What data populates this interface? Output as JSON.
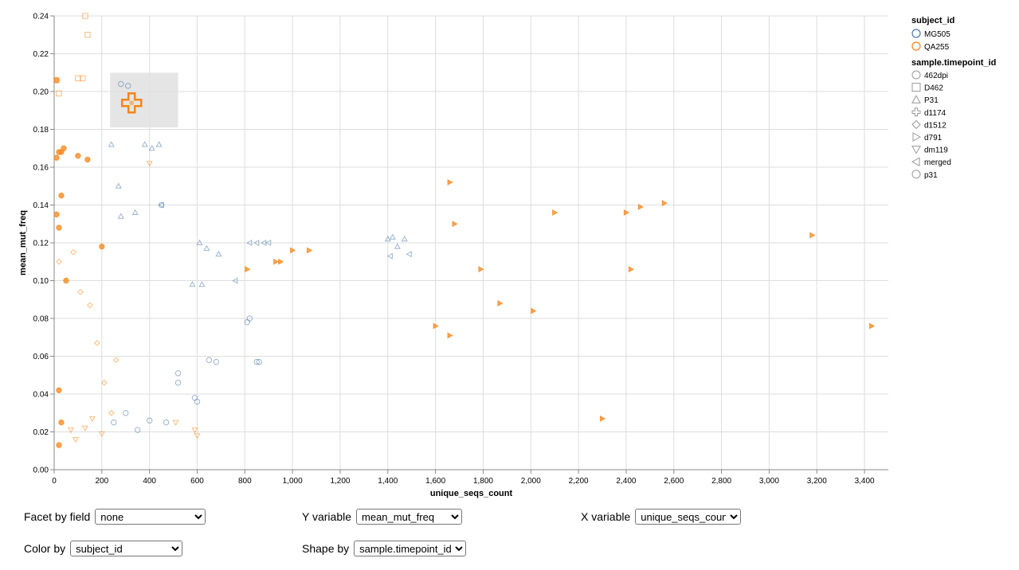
{
  "chart_data": {
    "type": "scatter",
    "title": "",
    "xlabel": "unique_seqs_count",
    "ylabel": "mean_mut_freq",
    "xlim": [
      0,
      3500
    ],
    "ylim": [
      0,
      0.24
    ],
    "x_ticks": [
      "0",
      "200",
      "400",
      "600",
      "800",
      "1,000",
      "1,200",
      "1,400",
      "1,600",
      "1,800",
      "2,000",
      "2,200",
      "2,400",
      "2,600",
      "2,800",
      "3,000",
      "3,200",
      "3,400"
    ],
    "y_ticks": [
      "0.00",
      "0.02",
      "0.04",
      "0.06",
      "0.08",
      "0.10",
      "0.12",
      "0.14",
      "0.16",
      "0.18",
      "0.20",
      "0.22",
      "0.24"
    ],
    "grid": true,
    "legend_placement": "right",
    "colors": {
      "MG505": "#4c78a8",
      "QA255": "#f58518",
      "highlight": "#e0e0e0"
    },
    "color_legend": {
      "title": "subject_id",
      "entries": [
        "MG505",
        "QA255"
      ]
    },
    "shape_legend": {
      "title": "sample.timepoint_id",
      "entries": [
        {
          "label": "462dpi",
          "shape": "circle"
        },
        {
          "label": "D462",
          "shape": "square"
        },
        {
          "label": "P31",
          "shape": "triangle-up"
        },
        {
          "label": "d1174",
          "shape": "cross"
        },
        {
          "label": "d1512",
          "shape": "diamond"
        },
        {
          "label": "d791",
          "shape": "triangle-right"
        },
        {
          "label": "dm119",
          "shape": "triangle-down"
        },
        {
          "label": "merged",
          "shape": "triangle-left"
        },
        {
          "label": "p31",
          "shape": "circle"
        }
      ]
    },
    "highlight_box": {
      "x_range": [
        235,
        520
      ],
      "y_range": [
        0.181,
        0.21
      ]
    },
    "selected_point": {
      "subject": "QA255",
      "shape": "cross",
      "x": 325,
      "y": 0.194
    },
    "series": [
      {
        "name": "QA255",
        "shape": "triangle-right",
        "solid": true,
        "points": [
          [
            1660,
            0.152
          ],
          [
            1680,
            0.13
          ],
          [
            2100,
            0.136
          ],
          [
            2400,
            0.136
          ],
          [
            2460,
            0.139
          ],
          [
            2560,
            0.141
          ],
          [
            3180,
            0.124
          ],
          [
            1790,
            0.106
          ],
          [
            2420,
            0.106
          ],
          [
            1870,
            0.088
          ],
          [
            2010,
            0.084
          ],
          [
            1600,
            0.076
          ],
          [
            1660,
            0.071
          ],
          [
            3430,
            0.076
          ],
          [
            2300,
            0.027
          ],
          [
            1070,
            0.116
          ],
          [
            1000,
            0.116
          ],
          [
            930,
            0.11
          ],
          [
            950,
            0.11
          ],
          [
            810,
            0.106
          ]
        ]
      },
      {
        "name": "MG505",
        "shape": "triangle-up",
        "solid": false,
        "points": [
          [
            1400,
            0.122
          ],
          [
            1420,
            0.123
          ],
          [
            1440,
            0.118
          ],
          [
            1470,
            0.122
          ],
          [
            380,
            0.172
          ],
          [
            410,
            0.17
          ],
          [
            440,
            0.172
          ],
          [
            240,
            0.172
          ],
          [
            270,
            0.15
          ],
          [
            610,
            0.12
          ],
          [
            640,
            0.117
          ],
          [
            690,
            0.114
          ],
          [
            580,
            0.098
          ],
          [
            620,
            0.098
          ],
          [
            280,
            0.134
          ],
          [
            340,
            0.136
          ]
        ]
      },
      {
        "name": "MG505",
        "shape": "triangle-left",
        "solid": false,
        "points": [
          [
            1490,
            0.114
          ],
          [
            1410,
            0.113
          ],
          [
            760,
            0.1
          ],
          [
            820,
            0.12
          ],
          [
            850,
            0.12
          ],
          [
            880,
            0.12
          ],
          [
            900,
            0.12
          ],
          [
            450,
            0.14
          ]
        ]
      },
      {
        "name": "MG505",
        "shape": "circle",
        "solid": false,
        "points": [
          [
            280,
            0.204
          ],
          [
            310,
            0.203
          ],
          [
            450,
            0.14
          ],
          [
            820,
            0.08
          ],
          [
            810,
            0.078
          ],
          [
            850,
            0.057
          ],
          [
            860,
            0.057
          ],
          [
            680,
            0.057
          ],
          [
            650,
            0.058
          ],
          [
            590,
            0.038
          ],
          [
            600,
            0.036
          ],
          [
            520,
            0.051
          ],
          [
            520,
            0.046
          ],
          [
            470,
            0.025
          ],
          [
            350,
            0.021
          ],
          [
            400,
            0.026
          ],
          [
            300,
            0.03
          ],
          [
            250,
            0.025
          ]
        ]
      },
      {
        "name": "QA255",
        "shape": "triangle-down",
        "solid": false,
        "points": [
          [
            590,
            0.021
          ],
          [
            600,
            0.018
          ],
          [
            510,
            0.025
          ],
          [
            400,
            0.162
          ],
          [
            130,
            0.022
          ],
          [
            160,
            0.027
          ],
          [
            200,
            0.019
          ],
          [
            70,
            0.021
          ],
          [
            90,
            0.016
          ]
        ]
      },
      {
        "name": "QA255",
        "shape": "square",
        "solid": false,
        "points": [
          [
            130,
            0.24
          ],
          [
            140,
            0.23
          ],
          [
            100,
            0.207
          ],
          [
            120,
            0.207
          ],
          [
            10,
            0.206
          ],
          [
            20,
            0.199
          ]
        ]
      },
      {
        "name": "QA255",
        "shape": "circle",
        "solid": true,
        "points": [
          [
            10,
            0.206
          ],
          [
            20,
            0.168
          ],
          [
            30,
            0.168
          ],
          [
            10,
            0.165
          ],
          [
            40,
            0.17
          ],
          [
            100,
            0.166
          ],
          [
            140,
            0.164
          ],
          [
            200,
            0.118
          ],
          [
            30,
            0.145
          ],
          [
            10,
            0.135
          ],
          [
            20,
            0.128
          ],
          [
            50,
            0.1
          ],
          [
            20,
            0.042
          ],
          [
            30,
            0.025
          ],
          [
            20,
            0.013
          ]
        ]
      },
      {
        "name": "QA255",
        "shape": "diamond",
        "solid": false,
        "points": [
          [
            20,
            0.11
          ],
          [
            80,
            0.115
          ],
          [
            110,
            0.094
          ],
          [
            150,
            0.087
          ],
          [
            180,
            0.067
          ],
          [
            210,
            0.046
          ],
          [
            240,
            0.03
          ],
          [
            260,
            0.058
          ]
        ]
      }
    ]
  },
  "controls": {
    "facet": {
      "label": "Facet by field",
      "value": "none"
    },
    "yvar": {
      "label": "Y variable",
      "value": "mean_mut_freq"
    },
    "xvar": {
      "label": "X variable",
      "value": "unique_seqs_count"
    },
    "color": {
      "label": "Color by",
      "value": "subject_id"
    },
    "shape": {
      "label": "Shape by",
      "value": "sample.timepoint_id"
    }
  }
}
